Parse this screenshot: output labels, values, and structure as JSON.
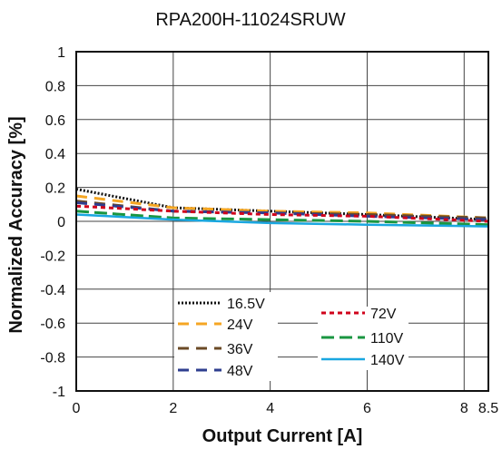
{
  "chart_data": {
    "type": "line",
    "title": "RPA200H-11024SRUW",
    "xlabel": "Output Current [A]",
    "ylabel": "Normalized Accuracy [%]",
    "xlim": [
      0,
      8.5
    ],
    "ylim": [
      -1,
      1
    ],
    "xticks": [
      0,
      2,
      4,
      6,
      8,
      8.5
    ],
    "xtick_labels": [
      "0",
      "2",
      "4",
      "6",
      "8",
      "8.5"
    ],
    "yticks": [
      1,
      0.8,
      0.6,
      0.4,
      0.2,
      0,
      -0.2,
      -0.4,
      -0.6,
      -0.8,
      -1
    ],
    "ytick_labels": [
      "1",
      "0.8",
      "0.6",
      "0.4",
      "0.2",
      "0",
      "-0.2",
      "-0.4",
      "-0.6",
      "-0.8",
      "-1"
    ],
    "grid": true,
    "series": [
      {
        "name": "16.5V",
        "color": "#111111",
        "dash": "dot",
        "x": [
          0,
          2,
          4,
          6,
          8.5
        ],
        "values": [
          0.19,
          0.08,
          0.06,
          0.04,
          0.01
        ]
      },
      {
        "name": "24V",
        "color": "#f5a623",
        "dash": "dash",
        "x": [
          0,
          2,
          4,
          6,
          8.5
        ],
        "values": [
          0.15,
          0.08,
          0.06,
          0.05,
          0.02
        ]
      },
      {
        "name": "36V",
        "color": "#6b4a26",
        "dash": "dash",
        "x": [
          0,
          2,
          4,
          6,
          8.5
        ],
        "values": [
          0.12,
          0.06,
          0.05,
          0.04,
          0.02
        ]
      },
      {
        "name": "48V",
        "color": "#2e3e8f",
        "dash": "dash",
        "x": [
          0,
          2,
          4,
          6,
          8.5
        ],
        "values": [
          0.11,
          0.06,
          0.05,
          0.03,
          0.01
        ]
      },
      {
        "name": "72V",
        "color": "#d0021b",
        "dash": "dot-short",
        "x": [
          0,
          2,
          4,
          6,
          8.5
        ],
        "values": [
          0.09,
          0.06,
          0.04,
          0.03,
          0.0
        ]
      },
      {
        "name": "110V",
        "color": "#1a9641",
        "dash": "long-dash",
        "x": [
          0,
          2,
          4,
          6,
          8.5
        ],
        "values": [
          0.06,
          0.02,
          0.01,
          0.0,
          -0.02
        ]
      },
      {
        "name": "140V",
        "color": "#1aa7e0",
        "dash": "solid",
        "x": [
          0,
          2,
          4,
          6,
          8.5
        ],
        "values": [
          0.04,
          0.01,
          -0.01,
          -0.02,
          -0.03
        ]
      }
    ]
  }
}
